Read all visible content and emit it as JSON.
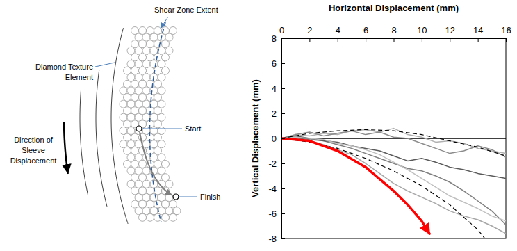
{
  "chart_data": {
    "type": "line",
    "x_label": "Horizontal Displacement (mm)",
    "y_label": "Vertical Displacement (mm)",
    "x": [
      0,
      1,
      2,
      3,
      4,
      5,
      6,
      7,
      8,
      9,
      10,
      11,
      12,
      13,
      14,
      15,
      16
    ],
    "xlim": [
      0,
      16
    ],
    "ylim": [
      -8,
      8
    ],
    "xticks": [
      0,
      2,
      4,
      6,
      8,
      10,
      12,
      14,
      16
    ],
    "yticks": [
      -8,
      -6,
      -4,
      -2,
      0,
      2,
      4,
      6,
      8
    ],
    "grid": false,
    "series": [
      {
        "color": "#000000",
        "line_style": "solid",
        "x": [
          0,
          16
        ],
        "values": [
          0,
          0
        ]
      },
      {
        "color": "#b0b0b0",
        "line_style": "solid",
        "values": [
          0,
          0.3,
          0.2,
          0.4,
          0.3,
          0.6,
          0.7,
          0.5,
          0.8,
          0.3,
          0.1,
          -0.3,
          -0.2,
          -0.4,
          -0.8,
          -1.0,
          -1.2
        ]
      },
      {
        "color": "#7f7f7f",
        "line_style": "solid",
        "values": [
          0,
          0.1,
          -0.1,
          -0.2,
          -0.5,
          -0.8,
          -1.2,
          -1.6,
          -2.0,
          -2.4,
          -2.6,
          -3.0,
          -3.5,
          -4.2,
          -5.0,
          -5.8,
          -6.9
        ]
      },
      {
        "color": "#595959",
        "line_style": "solid",
        "values": [
          0,
          0.2,
          0,
          -0.2,
          -0.3,
          -0.6,
          -0.8,
          -1.0,
          -1.4,
          -1.8,
          -1.6,
          -1.9,
          -2.3,
          -2.5,
          -2.8,
          -3.0,
          -3.2
        ]
      },
      {
        "color": "#a6a6a6",
        "line_style": "solid",
        "values": [
          0,
          0,
          -0.2,
          -0.5,
          -0.9,
          -1.3,
          -2.0,
          -2.8,
          -3.6,
          -4.2,
          -4.7,
          -5.2,
          -5.8,
          -6.2,
          -6.5,
          -7.0,
          -7.6
        ]
      },
      {
        "color": "#8c8c8c",
        "line_style": "solid",
        "values": [
          0,
          0.3,
          0.5,
          0.2,
          0.4,
          0.6,
          0.3,
          0.5,
          0.1,
          0,
          -0.4,
          -0.8,
          -1.2,
          -1.0,
          -0.6,
          -0.9,
          -1.5
        ]
      },
      {
        "color": "#c0c0c0",
        "line_style": "solid",
        "values": [
          0,
          0.1,
          0,
          -0.1,
          -0.4,
          -0.6,
          -0.9,
          -1.3,
          -1.9,
          -2.5,
          -3.2,
          -3.9,
          -4.6,
          -5.1,
          -5.6,
          -6.2,
          -6.6
        ]
      },
      {
        "color": "#000000",
        "line_style": "dashed",
        "x": [
          0,
          2,
          4,
          6,
          8,
          10,
          12,
          14,
          16
        ],
        "values": [
          0,
          0.4,
          0.6,
          0.7,
          0.6,
          0.3,
          -0.2,
          -0.7,
          -1.4
        ]
      },
      {
        "color": "#000000",
        "line_style": "dashed",
        "x": [
          0,
          2,
          4,
          6,
          8,
          10,
          12,
          14,
          14.5
        ],
        "values": [
          0,
          -0.3,
          -0.8,
          -1.6,
          -2.6,
          -3.8,
          -5.3,
          -7.3,
          -8
        ]
      },
      {
        "color": "#ff0000",
        "line_style": "solid",
        "marker": "arrow",
        "x": [
          0,
          2,
          4,
          6,
          8,
          9,
          10,
          10.6
        ],
        "values": [
          0,
          -0.2,
          -1.0,
          -2.3,
          -4.2,
          -5.3,
          -6.6,
          -7.7
        ]
      }
    ]
  },
  "diagram": {
    "shear_zone_label": "Shear Zone Extent",
    "texture_label": "Diamond Texture Element",
    "direction_label": "Direction of Sleeve Displacement",
    "start_label": "Start",
    "finish_label": "Finish"
  }
}
